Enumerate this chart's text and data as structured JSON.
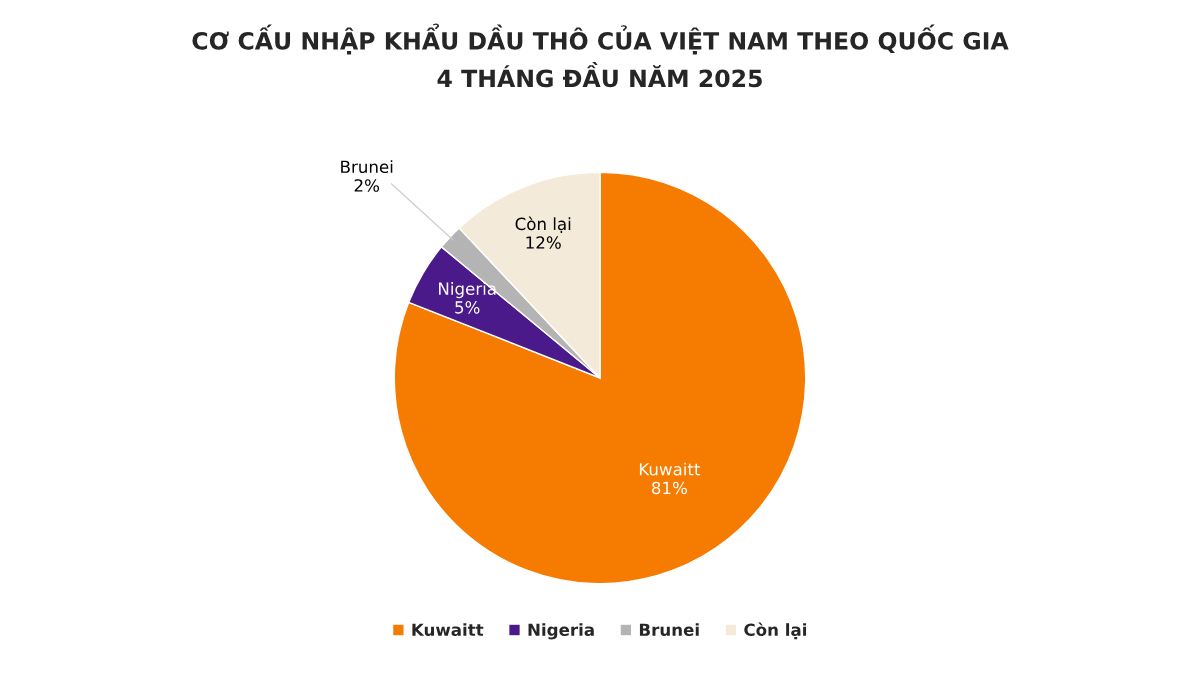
{
  "chart_data": {
    "type": "pie",
    "title": "CƠ CẤU NHẬP KHẨU DẦU THÔ CỦA VIỆT NAM THEO QUỐC GIA\n4 THÁNG ĐẦU NĂM 2025",
    "categories": [
      "Kuwaitt",
      "Nigeria",
      "Brunei",
      "Còn lại"
    ],
    "values": [
      81,
      5,
      2,
      12
    ],
    "value_labels": [
      "81%",
      "5%",
      "2%",
      "12%"
    ],
    "colors": [
      "#f57c00",
      "#4a1a8a",
      "#b4b4b4",
      "#f3ead9"
    ],
    "legend": "bottom"
  }
}
